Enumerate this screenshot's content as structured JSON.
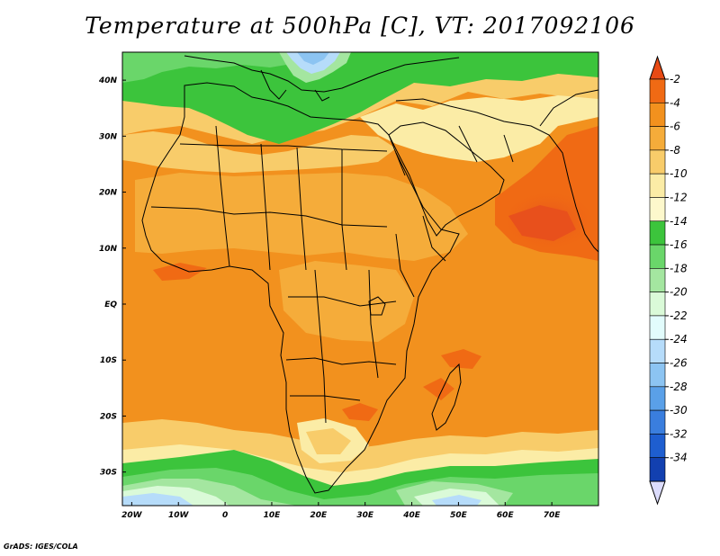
{
  "title": "Temperature at 500hPa [C], VT: 2017092106",
  "credit": "GrADS: IGES/COLA",
  "map": {
    "lon_range": [
      -22,
      80
    ],
    "lat_range": [
      -36,
      45
    ],
    "lon_ticks": [
      {
        "v": -20,
        "t": "20W"
      },
      {
        "v": -10,
        "t": "10W"
      },
      {
        "v": 0,
        "t": "0"
      },
      {
        "v": 10,
        "t": "10E"
      },
      {
        "v": 20,
        "t": "20E"
      },
      {
        "v": 30,
        "t": "30E"
      },
      {
        "v": 40,
        "t": "40E"
      },
      {
        "v": 50,
        "t": "50E"
      },
      {
        "v": 60,
        "t": "60E"
      },
      {
        "v": 70,
        "t": "70E"
      }
    ],
    "lat_ticks": [
      {
        "v": 40,
        "t": "40N"
      },
      {
        "v": 30,
        "t": "30N"
      },
      {
        "v": 20,
        "t": "20N"
      },
      {
        "v": 10,
        "t": "10N"
      },
      {
        "v": 0,
        "t": "EQ"
      },
      {
        "v": -10,
        "t": "10S"
      },
      {
        "v": -20,
        "t": "20S"
      },
      {
        "v": -30,
        "t": "30S"
      }
    ]
  },
  "colorbar": {
    "labels": [
      "-2",
      "-4",
      "-6",
      "-8",
      "-10",
      "-12",
      "-14",
      "-16",
      "-18",
      "-20",
      "-22",
      "-24",
      "-26",
      "-28",
      "-30",
      "-32",
      "-34"
    ],
    "colors": [
      "#e84a14",
      "#f06a14",
      "#f2911e",
      "#f5ac3a",
      "#f8cc6a",
      "#fbeca6",
      "#fdf8cc",
      "#3cc43c",
      "#6ad66a",
      "#a4e6a0",
      "#dafad8",
      "#e2fcfc",
      "#b6dcfa",
      "#8cc4f2",
      "#5aa0e8",
      "#3a7ede",
      "#1e5ed0",
      "#1240b0",
      "#0a1e78",
      "#dcdcfc"
    ]
  }
}
